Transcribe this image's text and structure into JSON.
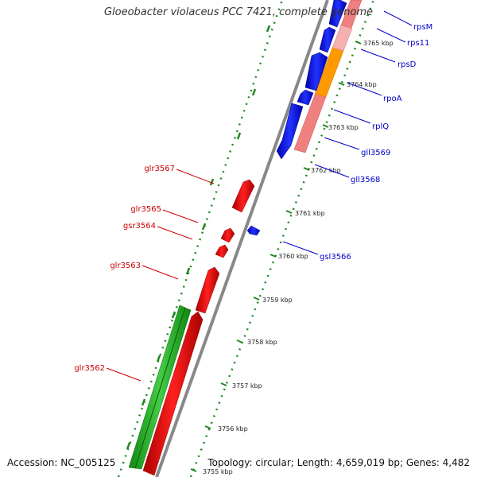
{
  "header": {
    "title": "Gloeobacter violaceus PCC 7421, complete genome"
  },
  "footer": {
    "accession": "Accession: NC_005125",
    "topology": "Topology: circular; Length: 4,659,019 bp; Genes: 4,482"
  },
  "colors": {
    "forward_gene": "#ff0000",
    "reverse_gene": "#0000ff",
    "forward_label": "#cc0000",
    "reverse_label": "#0000cc",
    "rna_gene": "#33bb33",
    "pink_feature": "#f08080",
    "orange_feature": "#ff9900",
    "backbone": "#888888",
    "tick": "#228822"
  },
  "scale_labels": [
    "3765 kbp",
    "3764 kbp",
    "3763 kbp",
    "3762 kbp",
    "3761 kbp",
    "3760 kbp",
    "3759 kbp",
    "3758 kbp",
    "3757 kbp",
    "3756 kbp",
    "3755 kbp"
  ],
  "forward_genes": [
    "glr3567",
    "glr3565",
    "gsr3564",
    "glr3563",
    "glr3562"
  ],
  "reverse_genes": [
    "rpsM",
    "rps11",
    "rpsD",
    "rpoA",
    "rplQ",
    "gll3569",
    "gll3568",
    "gsl3566"
  ]
}
